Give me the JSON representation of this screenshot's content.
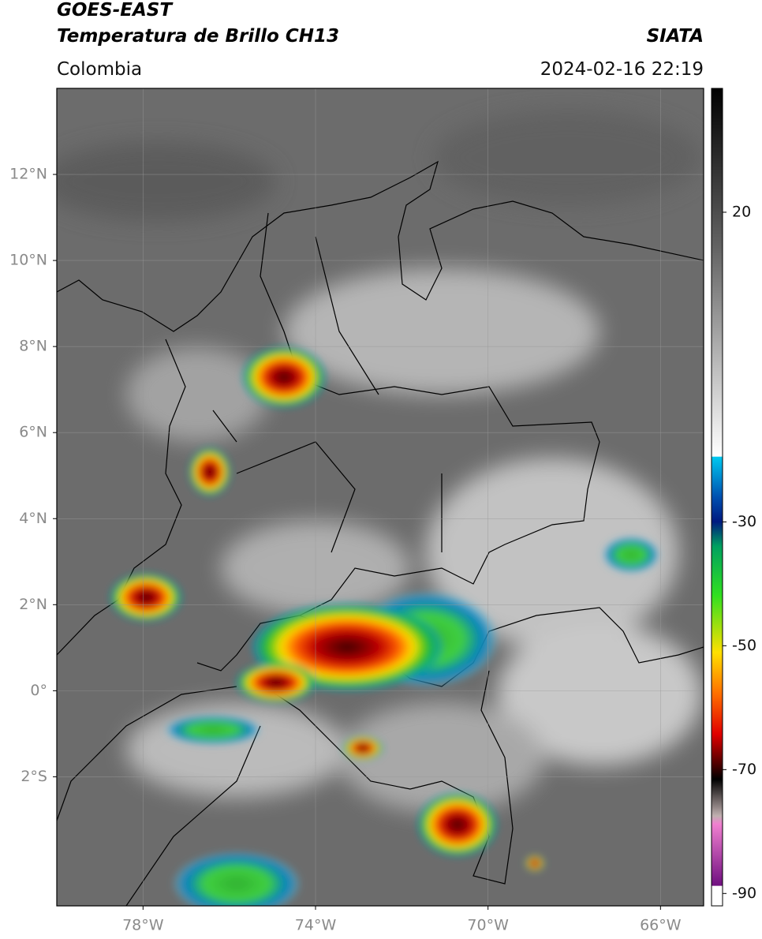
{
  "header": {
    "title": "GOES-EAST",
    "subtitle": "Temperatura de Brillo CH13",
    "region": "Colombia",
    "brand": "SIATA",
    "datetime": "2024-02-16 22:19"
  },
  "map": {
    "xlim": [
      -80,
      -65
    ],
    "ylim": [
      -5,
      14
    ],
    "xticks": [
      {
        "value": -78,
        "label": "78°W"
      },
      {
        "value": -74,
        "label": "74°W"
      },
      {
        "value": -70,
        "label": "70°W"
      },
      {
        "value": -66,
        "label": "66°W"
      }
    ],
    "yticks": [
      {
        "value": 12,
        "label": "12°N"
      },
      {
        "value": 10,
        "label": "10°N"
      },
      {
        "value": 8,
        "label": "8°N"
      },
      {
        "value": 6,
        "label": "6°N"
      },
      {
        "value": 4,
        "label": "4°N"
      },
      {
        "value": 2,
        "label": "2°N"
      },
      {
        "value": 0,
        "label": "0°"
      },
      {
        "value": -2,
        "label": "2°S"
      }
    ],
    "grid": true
  },
  "colorbar": {
    "lim": [
      -92,
      40
    ],
    "ticks": [
      20,
      -30,
      -50,
      -70,
      -90
    ]
  }
}
